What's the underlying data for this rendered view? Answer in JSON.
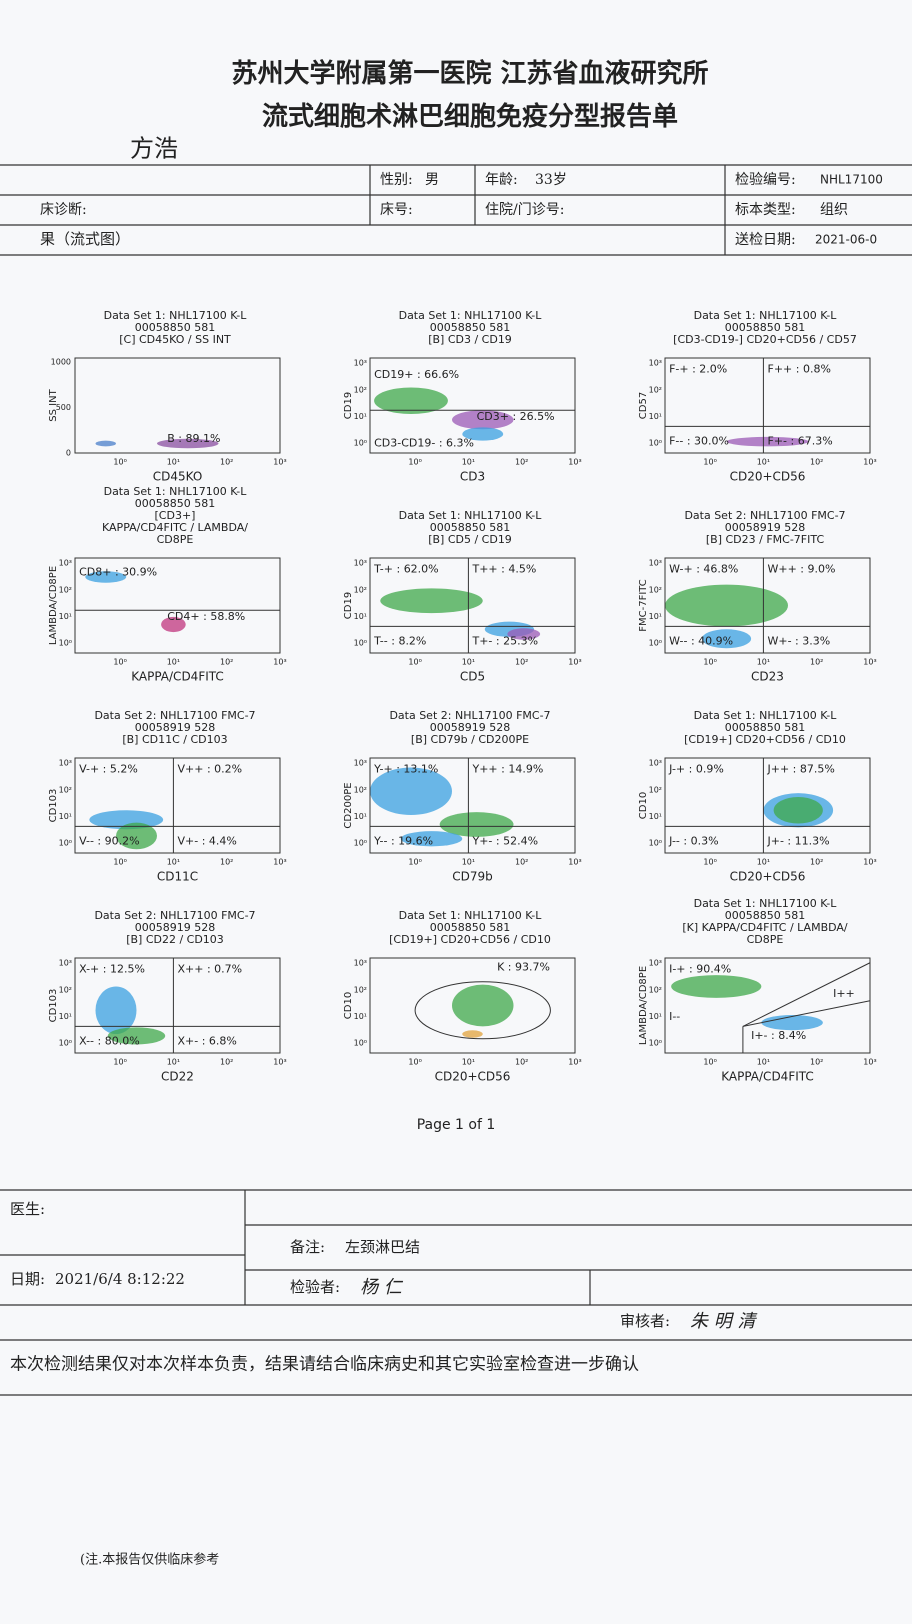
{
  "header": {
    "hospital": "苏州大学附属第一医院  江苏省血液研究所",
    "title": "流式细胞术淋巴细胞免疫分型报告单"
  },
  "patient": {
    "name": "方浩",
    "sex_label": "性别:",
    "sex": "男",
    "age_label": "年龄:",
    "age": "33岁",
    "id_label": "检验编号:",
    "id": "NHL17100",
    "diagnosis_label": "床诊断:",
    "bed_label": "床号:",
    "inpatient_label": "住院/门诊号:",
    "sample_type_label": "标本类型:",
    "sample_type": "组织",
    "section": "果（流式图）",
    "date_label": "送检日期:",
    "date": "2021-06-0"
  },
  "log_ticks": [
    "10⁰",
    "10¹",
    "10²",
    "10³"
  ],
  "linear_ticks": [
    "0",
    "500",
    "1000"
  ],
  "panels": [
    {
      "title": [
        "Data Set 1: NHL17100 K-L",
        "00058850 581",
        "[C] CD45KO / SS INT"
      ],
      "x_label": "CD45KO",
      "y_label": "SS INT",
      "gates": [
        "B : 89.1%"
      ]
    },
    {
      "title": [
        "Data Set 1: NHL17100 K-L",
        "00058850 581",
        "[B] CD3 / CD19"
      ],
      "x_label": "CD3",
      "y_label": "CD19",
      "gates": [
        "CD19+ : 66.6%",
        "CD3+ : 26.5%",
        "CD3-CD19- : 6.3%"
      ]
    },
    {
      "title": [
        "Data Set 1: NHL17100 K-L",
        "00058850 581",
        "[CD3-CD19-] CD20+CD56 / CD57"
      ],
      "x_label": "CD20+CD56",
      "y_label": "CD57",
      "gates": [
        "F-+ : 2.0%",
        "F++ : 0.8%",
        "F-- : 30.0%",
        "F+- : 67.3%"
      ]
    },
    {
      "title": [
        "Data Set 1: NHL17100 K-L",
        "00058850 581",
        "[CD3+]",
        "KAPPA/CD4FITC / LAMBDA/",
        "CD8PE"
      ],
      "x_label": "KAPPA/CD4FITC",
      "y_label": "LAMBDA/CD8PE",
      "gates": [
        "CD8+ : 30.9%",
        "CD4+ : 58.8%"
      ]
    },
    {
      "title": [
        "Data Set 1: NHL17100 K-L",
        "00058850 581",
        "[B] CD5 / CD19"
      ],
      "x_label": "CD5",
      "y_label": "CD19",
      "gates": [
        "T-+ : 62.0%",
        "T++ : 4.5%",
        "T-- : 8.2%",
        "T+- : 25.3%"
      ]
    },
    {
      "title": [
        "Data Set 2: NHL17100 FMC-7",
        "00058919 528",
        "[B] CD23 / FMC-7FITC"
      ],
      "x_label": "CD23",
      "y_label": "FMC-7FITC",
      "gates": [
        "W-+ : 46.8%",
        "W++ : 9.0%",
        "W-- : 40.9%",
        "W+- : 3.3%"
      ]
    },
    {
      "title": [
        "Data Set 2: NHL17100 FMC-7",
        "00058919 528",
        "[B] CD11C / CD103"
      ],
      "x_label": "CD11C",
      "y_label": "CD103",
      "gates": [
        "V-+ : 5.2%",
        "V++ : 0.2%",
        "V-- : 90.2%",
        "V+- : 4.4%"
      ]
    },
    {
      "title": [
        "Data Set 2: NHL17100 FMC-7",
        "00058919 528",
        "[B] CD79b / CD200PE"
      ],
      "x_label": "CD79b",
      "y_label": "CD200PE",
      "gates": [
        "Y-+ : 13.1%",
        "Y++ : 14.9%",
        "Y-- : 19.6%",
        "Y+- : 52.4%"
      ]
    },
    {
      "title": [
        "Data Set 1: NHL17100 K-L",
        "00058850 581",
        "[CD19+] CD20+CD56 / CD10"
      ],
      "x_label": "CD20+CD56",
      "y_label": "CD10",
      "gates": [
        "J-+ : 0.9%",
        "J++ : 87.5%",
        "J-- : 0.3%",
        "J+- : 11.3%"
      ]
    },
    {
      "title": [
        "Data Set 2: NHL17100 FMC-7",
        "00058919 528",
        "[B] CD22 / CD103"
      ],
      "x_label": "CD22",
      "y_label": "CD103",
      "gates": [
        "X-+ : 12.5%",
        "X++ : 0.7%",
        "X-- : 80.0%",
        "X+- : 6.8%"
      ]
    },
    {
      "title": [
        "Data Set 1: NHL17100 K-L",
        "00058850 581",
        "[CD19+] CD20+CD56 / CD10"
      ],
      "x_label": "CD20+CD56",
      "y_label": "CD10",
      "gates": [
        "K : 93.7%"
      ]
    },
    {
      "title": [
        "Data Set 1: NHL17100 K-L",
        "00058850 581",
        "[K] KAPPA/CD4FITC / LAMBDA/",
        "CD8PE"
      ],
      "x_label": "KAPPA/CD4FITC",
      "y_label": "LAMBDA/CD8PE",
      "gates": [
        "I-+ : 90.4%",
        "I++",
        "I--",
        "I+- : 8.4%"
      ]
    }
  ],
  "page_number": "Page 1 of 1",
  "footer": {
    "doctor_label": "医生:",
    "remark_label": "备注:",
    "remark": "左颈淋巴结",
    "date_label": "日期:",
    "date": "2021/6/4 8:12:22",
    "tester_label": "检验者:",
    "tester": "杨 仁",
    "reviewer_label": "审核者:",
    "reviewer": "朱 明 清",
    "disclaimer": "本次检测结果仅对本次样本负责，结果请结合临床病史和其它实验室检查进一步确认",
    "note": "(注.本报告仅供临床参考"
  }
}
